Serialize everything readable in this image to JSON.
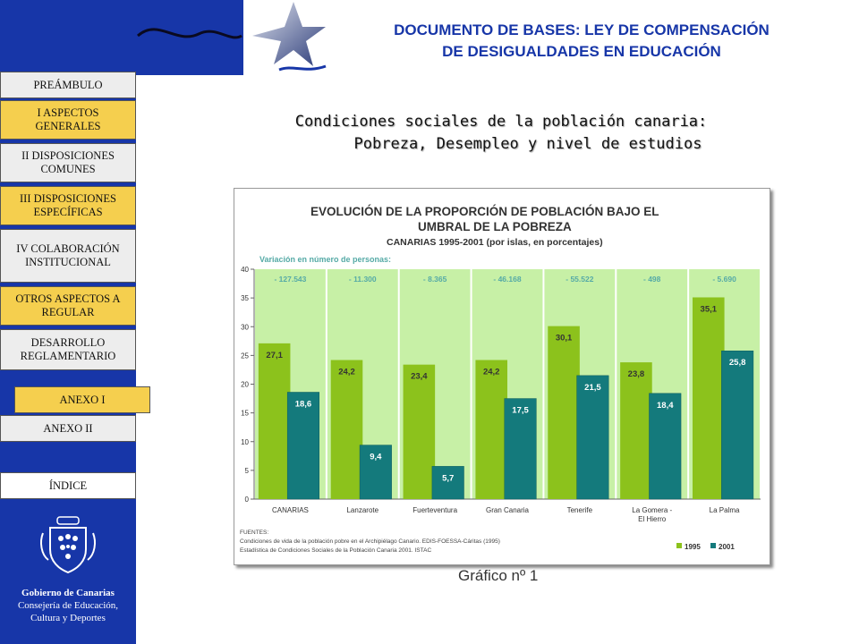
{
  "header": {
    "title_line1": "DOCUMENTO DE BASES: LEY DE COMPENSACIÓN",
    "title_line2": "DE DESIGUALDADES EN EDUCACIÓN"
  },
  "subtitle": {
    "line1": "Condiciones sociales de la población canaria:",
    "line2": "Pobreza, Desempleo y nivel de estudios"
  },
  "nav": {
    "preambulo": "PREÁMBULO",
    "aspectos": "I  ASPECTOS GENERALES",
    "comunes": "II  DISPOSICIONES COMUNES",
    "especificas": "III  DISPOSICIONES ESPECÍFICAS",
    "colaboracion": "IV COLABORACIÓN INSTITUCIONAL",
    "otros": "OTROS ASPECTOS A REGULAR",
    "desarrollo": "DESARROLLO REGLAMENTARIO",
    "anexo1": "ANEXO  I",
    "anexo2": "ANEXO  II",
    "indice": "ÍNDICE"
  },
  "logo": {
    "line1": "Gobierno de Canarias",
    "line2": "Consejería de Educación,",
    "line3": "Cultura y Deportes"
  },
  "caption": "Gráfico nº 1",
  "colors": {
    "sidebar": "#1736a8",
    "series_1995": "#8cc21c",
    "series_2001": "#147a7c",
    "plot_bg": "#c7f0a6",
    "accent_title": "#1736a8"
  },
  "chart_data": {
    "type": "bar",
    "title_line1": "EVOLUCIÓN DE LA PROPORCIÓN DE POBLACIÓN BAJO EL",
    "title_line2": "UMBRAL DE LA POBREZA",
    "subtitle": "CANARIAS 1995-2001 (por islas, en porcentajes)",
    "variation_label": "Variación en número de personas:",
    "categories": [
      "CANARIAS",
      "Lanzarote",
      "Fuerteventura",
      "Gran Canaria",
      "Tenerife",
      "La Gomera - El Hierro",
      "La Palma"
    ],
    "variation": [
      "- 127.543",
      "- 11.300",
      "- 8.365",
      "- 46.168",
      "- 55.522",
      "- 498",
      "- 5.690"
    ],
    "series": [
      {
        "name": "1995",
        "values": [
          27.1,
          24.2,
          23.4,
          24.2,
          30.1,
          23.8,
          35.1
        ],
        "labels": [
          "27,1",
          "24,2",
          "23,4",
          "24,2",
          "30,1",
          "23,8",
          "35,1"
        ]
      },
      {
        "name": "2001",
        "values": [
          18.6,
          9.4,
          5.7,
          17.5,
          21.5,
          18.4,
          25.8
        ],
        "labels": [
          "18,6",
          "9,4",
          "5,7",
          "17,5",
          "21,5",
          "18,4",
          "25,8"
        ]
      }
    ],
    "ylim": [
      0,
      40
    ],
    "yticks": [
      0,
      5,
      10,
      15,
      20,
      25,
      30,
      35,
      40
    ],
    "legend": "bottom-right",
    "sources": [
      "FUENTES:",
      "Condiciones de vida de la población pobre en el Archipiélago Canario. EDIS-FOESSA-Cáritas (1995)",
      "Estadística de Condiciones Sociales de la Población Canaria 2001. ISTAC"
    ]
  }
}
